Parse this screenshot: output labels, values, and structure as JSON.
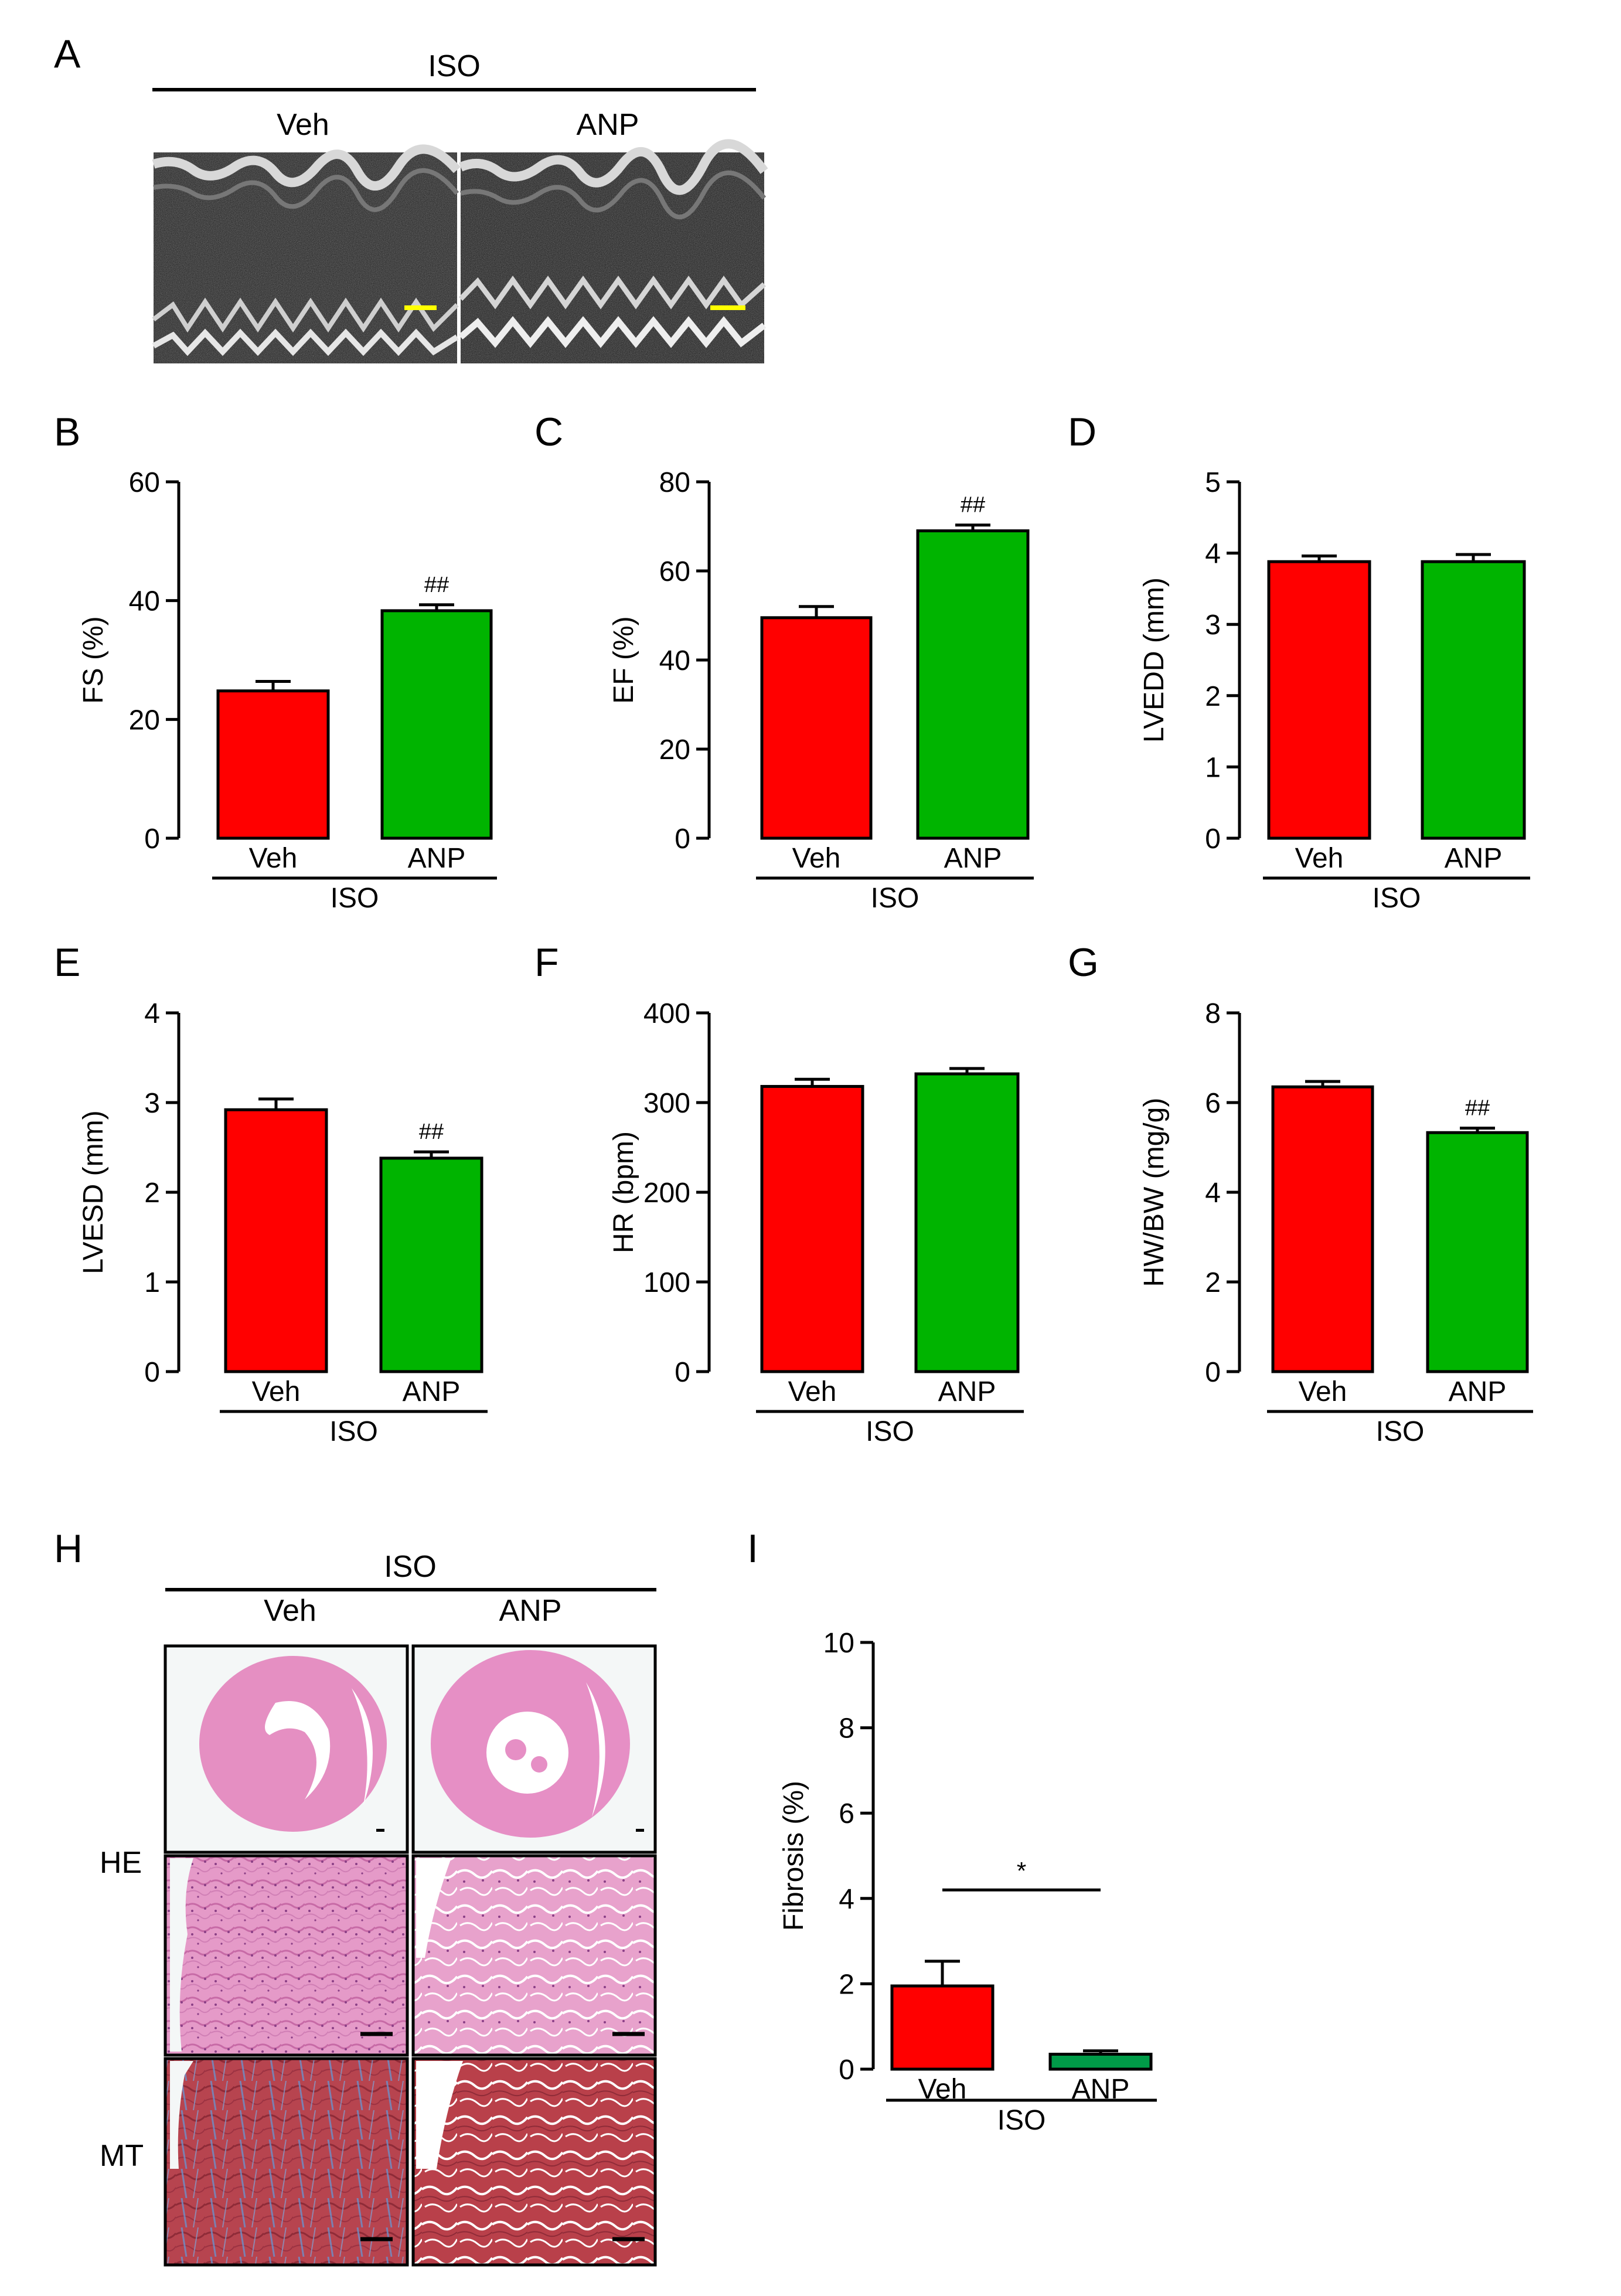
{
  "colors": {
    "veh": "#ff0000",
    "anp": "#00b400",
    "anp_fibrosis": "#009b48",
    "scale_bar_echo": "#ffff00",
    "scale_bar_histo": "#000000"
  },
  "panel_a": {
    "letter": "A",
    "group_label": "ISO",
    "columns": [
      "Veh",
      "ANP"
    ]
  },
  "panel_h": {
    "letter": "H",
    "group_label": "ISO",
    "columns": [
      "Veh",
      "ANP"
    ],
    "rows": [
      "HE",
      "MT"
    ]
  },
  "chart_data": [
    {
      "panel": "B",
      "type": "bar",
      "categories": [
        "Veh",
        "ANP"
      ],
      "values": [
        24.8,
        38.3
      ],
      "errors": [
        1.6,
        1.0
      ],
      "ylabel": "FS (%)",
      "ylim": [
        0,
        60
      ],
      "yticks": [
        "0",
        "20",
        "40",
        "60"
      ],
      "group_label": "ISO",
      "annotations": [
        "",
        "##"
      ]
    },
    {
      "panel": "C",
      "type": "bar",
      "categories": [
        "Veh",
        "ANP"
      ],
      "values": [
        49.5,
        69.0
      ],
      "errors": [
        2.5,
        1.3
      ],
      "ylabel": "EF (%)",
      "ylim": [
        0,
        80
      ],
      "yticks": [
        "0",
        "20",
        "40",
        "60",
        "80"
      ],
      "group_label": "ISO",
      "annotations": [
        "",
        "##"
      ]
    },
    {
      "panel": "D",
      "type": "bar",
      "categories": [
        "Veh",
        "ANP"
      ],
      "values": [
        3.88,
        3.88
      ],
      "errors": [
        0.08,
        0.1
      ],
      "ylabel": "LVEDD (mm)",
      "ylim": [
        0,
        5
      ],
      "yticks": [
        "0",
        "1",
        "2",
        "3",
        "4",
        "5"
      ],
      "group_label": "ISO",
      "annotations": [
        "",
        ""
      ]
    },
    {
      "panel": "E",
      "type": "bar",
      "categories": [
        "Veh",
        "ANP"
      ],
      "values": [
        2.92,
        2.38
      ],
      "errors": [
        0.12,
        0.07
      ],
      "ylabel": "LVESD (mm)",
      "ylim": [
        0,
        4
      ],
      "yticks": [
        "0",
        "1",
        "2",
        "3",
        "4"
      ],
      "group_label": "ISO",
      "annotations": [
        "",
        "##"
      ]
    },
    {
      "panel": "F",
      "type": "bar",
      "categories": [
        "Veh",
        "ANP"
      ],
      "values": [
        318,
        332
      ],
      "errors": [
        8,
        6
      ],
      "ylabel": "HR (bpm)",
      "ylim": [
        0,
        400
      ],
      "yticks": [
        "0",
        "100",
        "200",
        "300",
        "400"
      ],
      "group_label": "ISO",
      "annotations": [
        "",
        ""
      ]
    },
    {
      "panel": "G",
      "type": "bar",
      "categories": [
        "Veh",
        "ANP"
      ],
      "values": [
        6.35,
        5.33
      ],
      "errors": [
        0.12,
        0.1
      ],
      "ylabel": "HW/BW (mg/g)",
      "ylim": [
        0,
        8
      ],
      "yticks": [
        "0",
        "2",
        "4",
        "6",
        "8"
      ],
      "group_label": "ISO",
      "annotations": [
        "",
        "##"
      ]
    },
    {
      "panel": "I",
      "type": "bar",
      "categories": [
        "Veh",
        "ANP"
      ],
      "values": [
        1.95,
        0.35
      ],
      "errors": [
        0.58,
        0.08
      ],
      "ylabel": "Fibrosis (%)",
      "ylim": [
        0,
        10
      ],
      "yticks": [
        "0",
        "2",
        "4",
        "6",
        "8",
        "10"
      ],
      "group_label": "ISO",
      "annotations": [
        "",
        ""
      ],
      "significance": "*"
    }
  ]
}
